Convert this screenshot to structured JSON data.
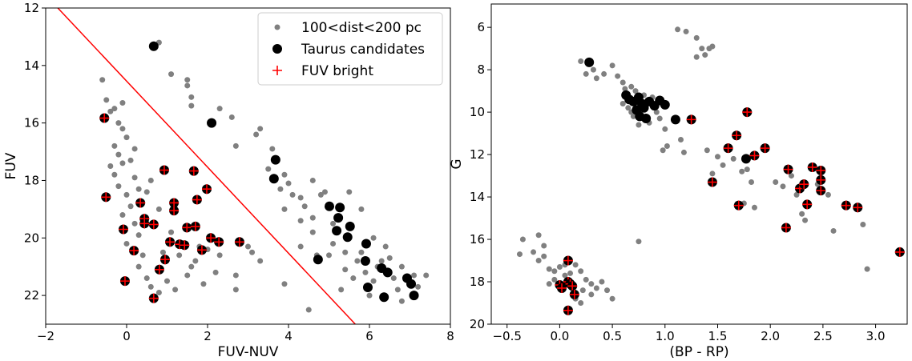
{
  "chart_data": [
    {
      "type": "scatter",
      "xlabel": "FUV-NUV",
      "ylabel": "FUV",
      "xlim": [
        -2,
        8
      ],
      "ylim": [
        12,
        23
      ],
      "y_inverted": true,
      "xticks": [
        {
          "value": -2,
          "label": "−2"
        },
        0,
        2,
        4,
        6,
        8
      ],
      "yticks": [
        12,
        14,
        16,
        18,
        20,
        22
      ],
      "legend": "upper right",
      "series": [
        {
          "name": "100<dist<200 pc",
          "color": "#808080",
          "marker": "dot",
          "x": [
            -0.6,
            -0.5,
            -0.4,
            -0.3,
            -0.1,
            -0.2,
            -0.1,
            0.0,
            -0.3,
            -0.2,
            -0.1,
            0.1,
            -0.4,
            -0.3,
            0.2,
            -0.2,
            0.0,
            0.3,
            0.5,
            0.1,
            -0.1,
            0.2,
            0.3,
            0.0,
            0.4,
            0.3,
            0.5,
            0.6,
            0.8,
            1.0,
            1.2,
            0.9,
            1.3,
            1.6,
            1.5,
            1.7,
            1.9,
            2.2,
            2.0,
            2.3,
            2.7,
            2.7,
            3.0,
            3.1,
            3.3,
            3.9,
            4.5,
            0.8,
            1.1,
            1.5,
            1.5,
            1.6,
            1.6,
            2.3,
            2.6,
            3.3,
            3.2,
            2.7,
            3.6,
            3.5,
            3.9,
            4.0,
            3.8,
            4.1,
            4.3,
            4.4,
            4.6,
            4.8,
            4.9,
            4.6,
            4.3,
            4.7,
            5.1,
            5.0,
            5.4,
            5.7,
            5.8,
            5.4,
            5.6,
            5.9,
            6.1,
            6.2,
            6.3,
            6.5,
            6.6,
            6.7,
            6.8,
            7.1,
            7.2,
            7.4,
            6.1,
            6.4,
            5.1,
            4.6,
            5.8,
            5.5,
            4.3,
            3.9,
            1.8,
            1.1,
            0.8,
            0.6,
            0.2,
            6.0,
            6.8,
            5.3
          ],
          "y": [
            14.5,
            15.2,
            15.6,
            15.5,
            15.3,
            16.0,
            16.2,
            16.5,
            16.8,
            17.1,
            17.4,
            17.3,
            17.5,
            17.8,
            17.9,
            18.2,
            18.5,
            18.3,
            18.4,
            18.9,
            19.2,
            19.5,
            19.9,
            20.2,
            20.6,
            21.0,
            21.4,
            21.7,
            21.9,
            21.5,
            21.8,
            20.5,
            20.6,
            21.0,
            21.3,
            20.8,
            21.6,
            21.2,
            20.4,
            20.6,
            21.3,
            21.8,
            20.3,
            20.5,
            20.8,
            21.6,
            22.5,
            13.2,
            14.3,
            14.5,
            14.7,
            15.1,
            15.4,
            15.5,
            15.8,
            16.2,
            16.4,
            16.8,
            16.9,
            17.6,
            17.8,
            18.1,
            18.3,
            18.5,
            18.6,
            18.9,
            19.3,
            18.5,
            18.4,
            19.8,
            20.3,
            20.6,
            20.2,
            20.6,
            20.5,
            20.8,
            20.5,
            21.1,
            21.4,
            21.2,
            21.5,
            21.0,
            20.8,
            20.7,
            21.4,
            21.8,
            21.0,
            21.3,
            21.7,
            21.3,
            20.0,
            20.3,
            19.5,
            18.0,
            19.0,
            18.4,
            19.4,
            19.0,
            20.3,
            19.8,
            19.0,
            18.0,
            16.9,
            22.0,
            22.2,
            21.8
          ]
        },
        {
          "name": "Taurus candidates",
          "color": "#000000",
          "marker": "circle",
          "x": [
            0.67,
            2.1,
            3.68,
            3.64,
            5.01,
            5.27,
            5.23,
            5.52,
            5.19,
            5.46,
            5.92,
            5.9,
            5.96,
            6.3,
            6.36,
            6.93,
            7.03,
            7.1,
            4.73,
            6.45
          ],
          "y": [
            13.33,
            16.0,
            17.28,
            17.94,
            18.9,
            18.94,
            19.3,
            19.6,
            19.75,
            19.97,
            20.2,
            20.8,
            21.72,
            21.05,
            22.06,
            21.4,
            21.6,
            22.0,
            20.75,
            21.2
          ]
        },
        {
          "name": "FUV bright",
          "color": "#ff0000",
          "marker": "plus",
          "marker_bg": "#000000",
          "x": [
            -0.55,
            -0.51,
            -0.08,
            -0.04,
            0.18,
            0.34,
            0.44,
            0.44,
            0.67,
            0.93,
            0.67,
            0.81,
            0.95,
            1.07,
            1.17,
            1.17,
            1.31,
            1.43,
            1.49,
            1.66,
            1.7,
            1.74,
            1.86,
            1.98,
            2.08,
            2.28,
            2.79
          ],
          "y": [
            15.83,
            18.58,
            19.7,
            21.5,
            20.44,
            18.78,
            19.33,
            19.5,
            19.53,
            17.64,
            22.1,
            21.1,
            20.75,
            20.14,
            18.78,
            19.05,
            20.22,
            20.25,
            19.64,
            17.67,
            19.6,
            18.67,
            20.42,
            18.3,
            20.0,
            20.14,
            20.14
          ]
        }
      ],
      "lines": [
        {
          "color": "#ff0000",
          "x": [
            -1.7,
            5.65
          ],
          "y": [
            12,
            23
          ]
        }
      ]
    },
    {
      "type": "scatter",
      "xlabel": "(BP - RP)",
      "ylabel": "G",
      "xlim": [
        -0.65,
        3.3
      ],
      "ylim": [
        4.9,
        20
      ],
      "y_inverted": true,
      "xticks": [
        {
          "value": -0.5,
          "label": "−0.5"
        },
        {
          "value": 0,
          "label": "0.0"
        },
        0.5,
        {
          "value": 1,
          "label": "1.0"
        },
        1.5,
        {
          "value": 2,
          "label": "2.0"
        },
        2.5,
        {
          "value": 3,
          "label": "3.0"
        }
      ],
      "yticks": [
        6,
        8,
        10,
        12,
        14,
        16,
        18,
        20
      ],
      "series": [
        {
          "color": "#808080",
          "marker": "dot",
          "x": [
            0.2,
            0.25,
            0.32,
            0.35,
            0.42,
            0.5,
            0.55,
            0.6,
            0.62,
            0.68,
            0.72,
            0.8,
            0.88,
            0.92,
            0.85,
            0.75,
            0.7,
            0.68,
            0.6,
            0.65,
            0.95,
            1.0,
            0.98,
            1.02,
            1.15,
            1.18,
            1.12,
            1.2,
            1.3,
            1.35,
            1.38,
            1.42,
            1.45,
            1.3,
            1.4,
            1.5,
            1.55,
            1.45,
            1.65,
            1.73,
            1.78,
            1.82,
            1.75,
            1.85,
            2.05,
            2.12,
            2.2,
            2.25,
            2.3,
            2.33,
            2.45,
            2.55,
            2.6,
            2.88,
            2.92,
            0.75,
            0.5,
            -0.35,
            -0.38,
            -0.2,
            -0.15,
            -0.25,
            -0.2,
            -0.1,
            -0.05,
            0.0,
            0.05,
            -0.05,
            0.2,
            0.25,
            0.3,
            0.35,
            0.4,
            0.45,
            0.3,
            0.2,
            0.15,
            -0.1,
            0.15,
            0.1,
            0.05,
            -0.15,
            0.22
          ],
          "y": [
            7.6,
            8.2,
            8.0,
            8.4,
            8.2,
            7.8,
            8.3,
            8.6,
            8.9,
            8.8,
            9.0,
            9.2,
            9.3,
            10.0,
            10.5,
            10.6,
            10.2,
            10.0,
            9.6,
            9.8,
            10.3,
            10.8,
            11.8,
            11.6,
            11.3,
            11.9,
            6.1,
            6.2,
            6.5,
            7.0,
            7.3,
            7.0,
            6.9,
            7.4,
            11.8,
            12.1,
            12.5,
            12.9,
            12.2,
            12.8,
            12.7,
            13.3,
            14.3,
            14.5,
            13.3,
            13.5,
            13.0,
            13.9,
            14.8,
            15.1,
            13.4,
            13.9,
            15.6,
            15.3,
            17.4,
            16.1,
            18.8,
            16.0,
            16.7,
            15.8,
            16.3,
            16.6,
            17.0,
            17.4,
            17.5,
            17.3,
            17.7,
            17.9,
            17.5,
            17.9,
            18.1,
            18.3,
            18.0,
            18.4,
            18.6,
            19.0,
            18.8,
            18.1,
            17.2,
            17.6,
            17.2,
            16.8,
            18.4
          ]
        },
        {
          "color": "#000000",
          "marker": "circle",
          "x": [
            0.28,
            0.63,
            0.66,
            0.7,
            0.75,
            0.78,
            0.8,
            0.76,
            0.82,
            0.85,
            0.9,
            0.95,
            1.0,
            1.1,
            1.77,
            0.73
          ],
          "y": [
            7.65,
            9.2,
            9.4,
            9.5,
            9.3,
            9.6,
            9.8,
            10.2,
            10.3,
            9.5,
            9.7,
            9.45,
            9.65,
            10.35,
            12.2,
            9.9
          ]
        },
        {
          "color": "#ff0000",
          "marker": "plus",
          "marker_bg": "#000000",
          "x": [
            1.25,
            1.78,
            1.68,
            1.6,
            1.85,
            1.95,
            1.45,
            1.7,
            2.17,
            2.15,
            2.28,
            2.32,
            2.35,
            2.4,
            2.48,
            2.48,
            2.48,
            2.72,
            2.83,
            3.23,
            0.08,
            0.0,
            0.02,
            0.08,
            0.1,
            0.12,
            0.14,
            0.08
          ],
          "y": [
            10.35,
            10.0,
            11.1,
            11.7,
            12.05,
            11.7,
            13.3,
            14.4,
            12.7,
            15.45,
            13.6,
            13.4,
            14.35,
            12.6,
            12.75,
            13.2,
            13.7,
            14.4,
            14.5,
            16.6,
            17.0,
            18.15,
            18.3,
            18.0,
            18.1,
            18.2,
            18.6,
            19.35
          ]
        }
      ]
    }
  ]
}
